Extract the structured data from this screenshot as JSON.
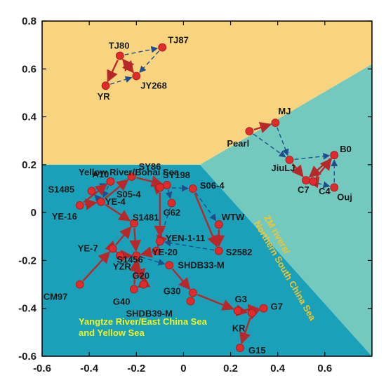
{
  "chart_data": {
    "type": "scatter",
    "xlim": [
      -0.6,
      0.8
    ],
    "ylim": [
      -0.6,
      0.8
    ],
    "x_ticks": [
      "-0.6",
      "-0.4",
      "-0.2",
      "0",
      "0.2",
      "0.4",
      "0.6"
    ],
    "y_ticks": [
      "0.8",
      "0.6",
      "0.4",
      "0.2",
      "0",
      "-0.2",
      "-0.4",
      "-0.6"
    ],
    "grid": false,
    "regions": [
      {
        "label_lines": [
          "Yellow River/Bohai Sea"
        ],
        "color": "#f8d47e",
        "label_color": "#1a1a1a",
        "polygon": [
          [
            -0.6,
            0.8
          ],
          [
            0.8,
            0.8
          ],
          [
            0.8,
            0.62
          ],
          [
            0.07,
            0.2
          ],
          [
            -0.6,
            0.2
          ]
        ],
        "label_at": [
          -0.445,
          0.155
        ]
      },
      {
        "label_lines": [
          "Yangtze River/East China Sea",
          "and Yellow Sea"
        ],
        "color": "#1aa0b8",
        "label_color": "#f3f31e",
        "polygon": [
          [
            -0.6,
            0.2
          ],
          [
            0.07,
            0.2
          ],
          [
            0.8,
            -0.6
          ],
          [
            -0.6,
            -0.6
          ]
        ],
        "label_at": [
          -0.445,
          -0.468
        ]
      },
      {
        "label_lines": [
          "ZM rivers/",
          "Northern South China Sea"
        ],
        "color": "#74c9be",
        "label_color": "#f3c42e",
        "polygon": [
          [
            0.07,
            0.2
          ],
          [
            0.8,
            0.62
          ],
          [
            0.8,
            -0.6
          ]
        ],
        "label_at": [
          0.34,
          -0.02
        ],
        "rotate": 60
      }
    ],
    "point_color": "#e12a2a",
    "arrow_color_red": "#b8282a",
    "arrow_color_blue": "#1f4e8c",
    "points": [
      {
        "name": "TJ80",
        "x": -0.27,
        "y": 0.655,
        "label": "TJ80"
      },
      {
        "name": "TJ87",
        "x": -0.09,
        "y": 0.69,
        "label": "TJ87"
      },
      {
        "name": "YR",
        "x": -0.33,
        "y": 0.53,
        "label": "YR"
      },
      {
        "name": "JY268",
        "x": -0.2,
        "y": 0.57,
        "label": "JY268"
      },
      {
        "name": "MJ",
        "x": 0.39,
        "y": 0.375,
        "label": "MJ"
      },
      {
        "name": "Pearl",
        "x": 0.28,
        "y": 0.34,
        "label": "Pearl"
      },
      {
        "name": "JiuLJ",
        "x": 0.45,
        "y": 0.22,
        "label": "JiuLJ"
      },
      {
        "name": "B0",
        "x": 0.64,
        "y": 0.24,
        "label": "B0"
      },
      {
        "name": "C7",
        "x": 0.52,
        "y": 0.135,
        "label": "C7"
      },
      {
        "name": "C4",
        "x": 0.55,
        "y": 0.13,
        "label": "C4"
      },
      {
        "name": "Ouj",
        "x": 0.64,
        "y": 0.105,
        "label": "Ouj"
      },
      {
        "name": "S1485",
        "x": -0.39,
        "y": 0.09,
        "label": "S1485"
      },
      {
        "name": "A10",
        "x": -0.31,
        "y": 0.13,
        "label": "A10"
      },
      {
        "name": "SY86",
        "x": -0.22,
        "y": 0.15,
        "label": "SY86"
      },
      {
        "name": "SY198",
        "x": -0.07,
        "y": 0.115,
        "label": "SY198"
      },
      {
        "name": "S05-4",
        "x": -0.1,
        "y": 0.105,
        "label": "S05-4"
      },
      {
        "name": "S06-4",
        "x": 0.04,
        "y": 0.1,
        "label": "S06-4"
      },
      {
        "name": "G62",
        "x": -0.05,
        "y": 0.04,
        "label": "G62"
      },
      {
        "name": "YE-4",
        "x": -0.35,
        "y": 0.045,
        "label": "YE-4"
      },
      {
        "name": "YE-16",
        "x": -0.44,
        "y": 0.03,
        "label": "YE-16"
      },
      {
        "name": "S1481",
        "x": -0.21,
        "y": -0.045,
        "label": "S1481"
      },
      {
        "name": "WTW",
        "x": 0.15,
        "y": -0.05,
        "label": "WTW"
      },
      {
        "name": "YEN-1-11",
        "x": -0.1,
        "y": -0.12,
        "label": "YEN-1-11"
      },
      {
        "name": "YE-7",
        "x": -0.3,
        "y": -0.15,
        "label": "YE-7"
      },
      {
        "name": "YE-20",
        "x": -0.115,
        "y": -0.16,
        "label": "YE-20"
      },
      {
        "name": "S2582",
        "x": 0.15,
        "y": -0.16,
        "label": "S2582"
      },
      {
        "name": "YZR",
        "x": -0.27,
        "y": -0.18,
        "label": "YZR"
      },
      {
        "name": "S1456",
        "x": -0.2,
        "y": -0.18,
        "label": "S1456"
      },
      {
        "name": "SHDB33-M",
        "x": -0.06,
        "y": -0.22,
        "label": "SHDB33-M"
      },
      {
        "name": "CM97",
        "x": -0.44,
        "y": -0.3,
        "label": "CM97"
      },
      {
        "name": "G20",
        "x": -0.17,
        "y": -0.3,
        "label": "G20"
      },
      {
        "name": "G40",
        "x": -0.21,
        "y": -0.32,
        "label": "G40"
      },
      {
        "name": "G30",
        "x": 0.04,
        "y": -0.335,
        "label": "G30"
      },
      {
        "name": "SHDB39-M",
        "x": 0.03,
        "y": -0.37,
        "label": "SHDB39-M"
      },
      {
        "name": "G3",
        "x": 0.23,
        "y": -0.41,
        "label": "G3"
      },
      {
        "name": "G7",
        "x": 0.34,
        "y": -0.4,
        "label": "G7"
      },
      {
        "name": "KR",
        "x": 0.29,
        "y": -0.42,
        "label": "KR"
      },
      {
        "name": "G15",
        "x": 0.24,
        "y": -0.565,
        "label": "G15"
      }
    ]
  }
}
